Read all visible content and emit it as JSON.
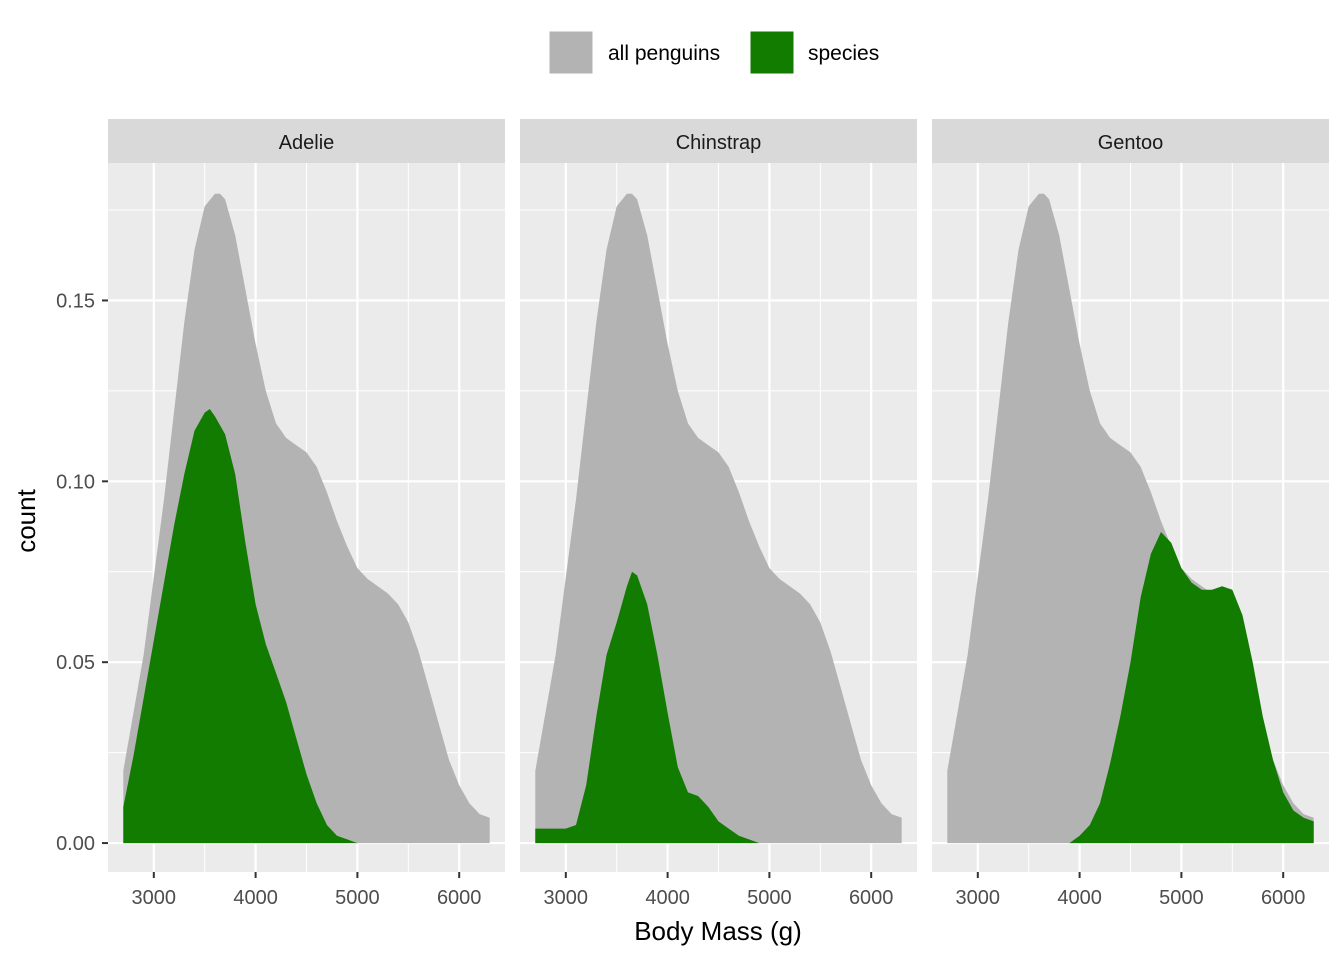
{
  "chart_data": {
    "type": "area",
    "facet_by": "species",
    "panels": [
      "Adelie",
      "Chinstrap",
      "Gentoo"
    ],
    "xlabel": "Body Mass (g)",
    "ylabel": "count",
    "xlim": [
      2550,
      6450
    ],
    "ylim": [
      -0.008,
      0.188
    ],
    "x_ticks": [
      3000,
      4000,
      5000,
      6000
    ],
    "x_tick_labels": [
      "3000",
      "4000",
      "5000",
      "6000"
    ],
    "y_ticks": [
      0.0,
      0.05,
      0.1,
      0.15
    ],
    "y_tick_labels": [
      "0.00",
      "0.05",
      "0.10",
      "0.15"
    ],
    "grid": true,
    "legend": {
      "position": "top",
      "entries": [
        {
          "label": "all penguins",
          "color": "#b3b3b3"
        },
        {
          "label": "species",
          "color": "#117c00"
        }
      ]
    },
    "background": "#ebebeb",
    "strip_fill": "#d9d9d9",
    "series": [
      {
        "name": "all penguins",
        "color": "#b3b3b3",
        "x": [
          2700,
          2900,
          3100,
          3300,
          3400,
          3500,
          3600,
          3650,
          3700,
          3800,
          3900,
          4000,
          4100,
          4200,
          4300,
          4400,
          4500,
          4600,
          4700,
          4800,
          4900,
          5000,
          5100,
          5200,
          5300,
          5400,
          5500,
          5600,
          5700,
          5800,
          5900,
          6000,
          6100,
          6200,
          6300
        ],
        "values": [
          0.02,
          0.052,
          0.095,
          0.144,
          0.164,
          0.176,
          0.1795,
          0.1795,
          0.178,
          0.168,
          0.153,
          0.138,
          0.125,
          0.116,
          0.112,
          0.11,
          0.108,
          0.104,
          0.097,
          0.089,
          0.082,
          0.076,
          0.073,
          0.071,
          0.069,
          0.066,
          0.061,
          0.053,
          0.043,
          0.033,
          0.023,
          0.016,
          0.011,
          0.008,
          0.007
        ]
      },
      {
        "name": "species",
        "panel": "Adelie",
        "color": "#117c00",
        "x": [
          2700,
          2800,
          2900,
          3000,
          3100,
          3200,
          3300,
          3400,
          3500,
          3550,
          3600,
          3700,
          3800,
          3900,
          4000,
          4100,
          4200,
          4300,
          4400,
          4500,
          4600,
          4700,
          4800,
          4900,
          5000,
          5100,
          5200
        ],
        "values": [
          0.01,
          0.024,
          0.04,
          0.056,
          0.072,
          0.088,
          0.102,
          0.114,
          0.119,
          0.12,
          0.118,
          0.113,
          0.102,
          0.083,
          0.066,
          0.055,
          0.047,
          0.039,
          0.029,
          0.019,
          0.011,
          0.005,
          0.002,
          0.001,
          0.0,
          0.0,
          0.0
        ]
      },
      {
        "name": "species",
        "panel": "Chinstrap",
        "color": "#117c00",
        "x": [
          2700,
          2800,
          2900,
          3000,
          3100,
          3200,
          3300,
          3400,
          3500,
          3600,
          3650,
          3700,
          3800,
          3900,
          4000,
          4100,
          4200,
          4300,
          4400,
          4500,
          4600,
          4700,
          4800,
          4900,
          5000,
          5100,
          5200
        ],
        "values": [
          0.004,
          0.004,
          0.004,
          0.004,
          0.005,
          0.016,
          0.035,
          0.052,
          0.061,
          0.071,
          0.075,
          0.074,
          0.066,
          0.052,
          0.036,
          0.021,
          0.014,
          0.013,
          0.01,
          0.006,
          0.004,
          0.002,
          0.001,
          0.0,
          0.0,
          0.0,
          0.0
        ]
      },
      {
        "name": "species",
        "panel": "Gentoo",
        "color": "#117c00",
        "x": [
          2700,
          3000,
          3200,
          3400,
          3600,
          3700,
          3800,
          3900,
          4000,
          4100,
          4200,
          4300,
          4400,
          4500,
          4600,
          4700,
          4800,
          4900,
          5000,
          5100,
          5200,
          5300,
          5400,
          5500,
          5600,
          5700,
          5800,
          5900,
          6000,
          6100,
          6200,
          6300
        ],
        "values": [
          0.0,
          0.0,
          0.0,
          0.0,
          0.0,
          0.0,
          0.0,
          0.0,
          0.002,
          0.005,
          0.011,
          0.022,
          0.035,
          0.05,
          0.068,
          0.08,
          0.086,
          0.083,
          0.076,
          0.072,
          0.07,
          0.07,
          0.071,
          0.07,
          0.063,
          0.05,
          0.035,
          0.023,
          0.014,
          0.009,
          0.007,
          0.006
        ]
      }
    ]
  }
}
